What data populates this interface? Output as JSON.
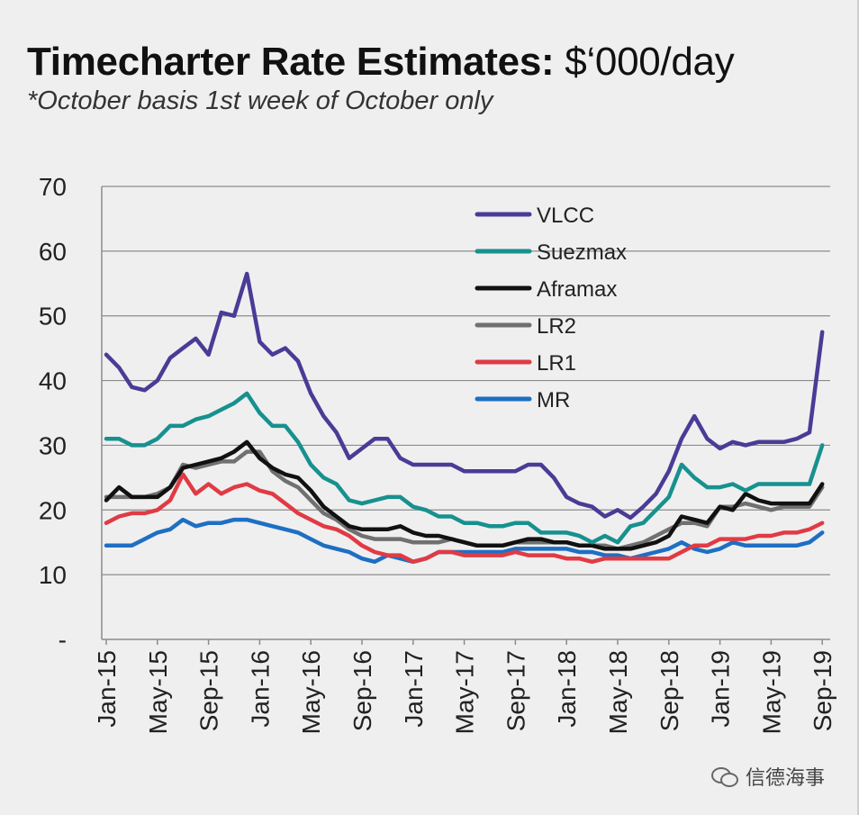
{
  "title_bold": "Timecharter Rate Estimates:",
  "title_rest": " $‘000/day",
  "subtitle": "*October basis 1st week of October only",
  "watermark_text": "信德海事",
  "chart_data": {
    "type": "line",
    "ylim": [
      0,
      70
    ],
    "yticks": [
      "-",
      "10",
      "20",
      "30",
      "40",
      "50",
      "60",
      "70"
    ],
    "xlabels": [
      "Jan-15",
      "May-15",
      "Sep-15",
      "Jan-16",
      "May-16",
      "Sep-16",
      "Jan-17",
      "May-17",
      "Sep-17",
      "Jan-18",
      "May-18",
      "Sep-18",
      "Jan-19",
      "May-19",
      "Sep-19"
    ],
    "grid": true,
    "legend_position": "top-right",
    "series": [
      {
        "name": "VLCC",
        "color": "#4B3B96",
        "values": [
          44,
          42,
          39,
          38.5,
          40,
          43.5,
          45,
          46.5,
          44,
          50.5,
          50,
          56.5,
          46,
          44,
          45,
          43,
          38,
          34.5,
          32,
          28,
          29.5,
          31,
          31,
          28,
          27,
          27,
          27,
          27,
          26,
          26,
          26,
          26,
          26,
          27,
          27,
          25,
          22,
          21,
          20.5,
          19,
          20,
          18.8,
          20.5,
          22.5,
          26,
          31,
          34.5,
          31,
          29.5,
          30.5,
          30,
          30.5,
          30.5,
          30.5,
          31,
          32,
          47.5
        ]
      },
      {
        "name": "Suezmax",
        "color": "#17918F",
        "values": [
          31,
          31,
          30,
          30,
          31,
          33,
          33,
          34,
          34.5,
          35.5,
          36.5,
          38,
          35,
          33,
          33,
          30.5,
          27,
          25,
          24,
          21.5,
          21,
          21.5,
          22,
          22,
          20.5,
          20,
          19,
          19,
          18,
          18,
          17.5,
          17.5,
          18,
          18,
          16.5,
          16.5,
          16.5,
          16,
          15,
          16,
          15,
          17.5,
          18,
          20,
          22,
          27,
          25,
          23.5,
          23.5,
          24,
          23,
          24,
          24,
          24,
          24,
          24,
          30
        ]
      },
      {
        "name": "Aframax",
        "color": "#111111",
        "values": [
          21.5,
          23.5,
          22,
          22,
          22,
          23.5,
          26.5,
          27,
          27.5,
          28,
          29,
          30.5,
          28,
          26.5,
          25.5,
          25,
          23,
          20.5,
          19,
          17.5,
          17,
          17,
          17,
          17.5,
          16.5,
          16,
          16,
          15.5,
          15,
          14.5,
          14.5,
          14.5,
          15,
          15.5,
          15.5,
          15,
          15,
          14.5,
          14.5,
          14,
          14,
          14,
          14.5,
          15,
          16,
          19,
          18.5,
          18,
          20.5,
          20,
          22.5,
          21.5,
          21,
          21,
          21,
          21,
          24
        ]
      },
      {
        "name": "LR2",
        "color": "#707070",
        "values": [
          22,
          22,
          22,
          22,
          22.5,
          23.5,
          27,
          26.5,
          27,
          27.5,
          27.5,
          29,
          29,
          26,
          24.5,
          23.5,
          21.5,
          19.5,
          18.5,
          17,
          16,
          15.5,
          15.5,
          15.5,
          15,
          15,
          15,
          15.5,
          15,
          14.5,
          14.5,
          14.5,
          15,
          15,
          15,
          15,
          15,
          14.5,
          14.5,
          14.5,
          14,
          14.5,
          15,
          16,
          17,
          18,
          18,
          17.5,
          20.5,
          20.5,
          21,
          20.5,
          20,
          20.5,
          20.5,
          20.5,
          23.5
        ]
      },
      {
        "name": "LR1",
        "color": "#E03B45",
        "values": [
          18,
          19,
          19.5,
          19.5,
          20,
          21.5,
          25.5,
          22.5,
          24,
          22.5,
          23.5,
          24,
          23,
          22.5,
          21,
          19.5,
          18.5,
          17.5,
          17,
          16,
          14.5,
          13.5,
          13,
          13,
          12,
          12.5,
          13.5,
          13.5,
          13,
          13,
          13,
          13,
          13.5,
          13,
          13,
          13,
          12.5,
          12.5,
          12,
          12.5,
          12.5,
          12.5,
          12.5,
          12.5,
          12.5,
          13.5,
          14.5,
          14.5,
          15.5,
          15.5,
          15.5,
          16,
          16,
          16.5,
          16.5,
          17,
          18
        ]
      },
      {
        "name": "MR",
        "color": "#1E6FC3",
        "values": [
          14.5,
          14.5,
          14.5,
          15.5,
          16.5,
          17,
          18.5,
          17.5,
          18,
          18,
          18.5,
          18.5,
          18,
          17.5,
          17,
          16.5,
          15.5,
          14.5,
          14,
          13.5,
          12.5,
          12,
          13,
          12.5,
          12,
          12.5,
          13.5,
          13.5,
          13.5,
          13.5,
          13.5,
          13.5,
          14,
          14,
          14,
          14,
          14,
          13.5,
          13.5,
          13,
          13,
          12.5,
          13,
          13.5,
          14,
          15,
          14,
          13.5,
          14,
          15,
          14.5,
          14.5,
          14.5,
          14.5,
          14.5,
          15,
          16.5
        ]
      }
    ]
  }
}
